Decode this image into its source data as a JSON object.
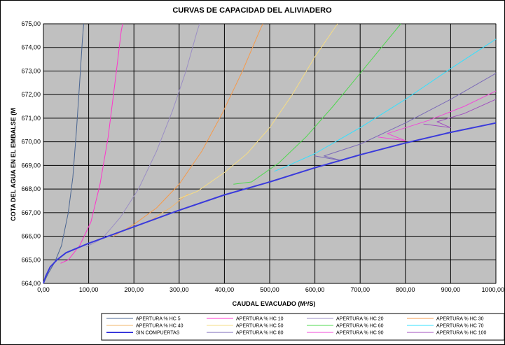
{
  "chart_data": {
    "type": "line",
    "title": "CURVAS DE CAPACIDAD DEL ALIVIADERO",
    "xlabel": "CAUDAL EVACUADO (M³/S)",
    "ylabel": "COTA DEL AGUA EN EL EMBALSE (M",
    "xlim": [
      0,
      1000
    ],
    "ylim": [
      664,
      675
    ],
    "x_ticks": [
      "0,00",
      "100,00",
      "200,00",
      "300,00",
      "400,00",
      "500,00",
      "600,00",
      "700,00",
      "800,00",
      "900,00",
      "1000,00"
    ],
    "y_ticks": [
      "664,00",
      "665,00",
      "666,00",
      "667,00",
      "668,00",
      "669,00",
      "670,00",
      "671,00",
      "672,00",
      "673,00",
      "674,00",
      "675,00"
    ],
    "grid": true,
    "plot_background": "#c0c0c0",
    "legend_position": "bottom",
    "series": [
      {
        "name": "APERTURA % HC 5",
        "color": "#4a6591",
        "width": 1,
        "points": [
          [
            0,
            664
          ],
          [
            10,
            664.4
          ],
          [
            25,
            664.9
          ],
          [
            40,
            665.6
          ],
          [
            55,
            667
          ],
          [
            65,
            668.5
          ],
          [
            73,
            670.5
          ],
          [
            80,
            672.5
          ],
          [
            86,
            674.3
          ],
          [
            89,
            675
          ]
        ]
      },
      {
        "name": "APERTURA % HC 10",
        "color": "#ff33cc",
        "width": 1,
        "points": [
          [
            38,
            664.85
          ],
          [
            55,
            665
          ],
          [
            80,
            665.6
          ],
          [
            105,
            666.6
          ],
          [
            125,
            668.2
          ],
          [
            143,
            670.2
          ],
          [
            160,
            672.8
          ],
          [
            172,
            674.7
          ],
          [
            175,
            675
          ]
        ]
      },
      {
        "name": "APERTURA % HC 20",
        "color": "#9b8ec4",
        "width": 1,
        "points": [
          [
            95,
            665.55
          ],
          [
            130,
            665.9
          ],
          [
            170,
            666.8
          ],
          [
            210,
            668
          ],
          [
            250,
            669.6
          ],
          [
            285,
            671.3
          ],
          [
            315,
            673
          ],
          [
            340,
            674.7
          ],
          [
            345,
            675
          ]
        ]
      },
      {
        "name": "APERTURA % HC 30",
        "color": "#f59a4b",
        "width": 1,
        "points": [
          [
            155,
            666
          ],
          [
            200,
            666.5
          ],
          [
            250,
            667.2
          ],
          [
            300,
            668.2
          ],
          [
            350,
            669.6
          ],
          [
            395,
            671.2
          ],
          [
            440,
            673
          ],
          [
            480,
            674.8
          ],
          [
            485,
            675
          ]
        ]
      },
      {
        "name": "APERTURA % HC 40",
        "color": "#f0b46a",
        "width": 1,
        "points": [
          [
            230,
            666.6
          ],
          [
            280,
            667.2
          ],
          [
            320,
            667.8
          ]
        ]
      },
      {
        "name": "APERTURA % HC 50",
        "color": "#f5dc83",
        "width": 1,
        "points": [
          [
            300,
            667.6
          ],
          [
            340,
            667.9
          ],
          [
            400,
            668.7
          ],
          [
            450,
            669.5
          ],
          [
            500,
            670.6
          ],
          [
            550,
            672
          ],
          [
            600,
            673.6
          ],
          [
            650,
            675
          ]
        ]
      },
      {
        "name": "APERTURA % HC 60",
        "color": "#4fd84f",
        "width": 1,
        "points": [
          [
            420,
            668.2
          ],
          [
            460,
            668.3
          ],
          [
            520,
            669.1
          ],
          [
            580,
            670.2
          ],
          [
            640,
            671.5
          ],
          [
            700,
            672.9
          ],
          [
            760,
            674.3
          ],
          [
            790,
            675
          ]
        ]
      },
      {
        "name": "APERTURA % HC 70",
        "color": "#33e1ff",
        "width": 1,
        "points": [
          [
            510,
            668.75
          ],
          [
            530,
            668.9
          ],
          [
            600,
            669.5
          ],
          [
            700,
            670.6
          ],
          [
            800,
            671.8
          ],
          [
            900,
            673.1
          ],
          [
            1000,
            674.35
          ]
        ]
      },
      {
        "name": "SIN COMPUERTAS",
        "color": "#3a3adb",
        "width": 2,
        "points": [
          [
            0,
            664
          ],
          [
            5,
            664.3
          ],
          [
            15,
            664.7
          ],
          [
            30,
            665
          ],
          [
            50,
            665.3
          ],
          [
            100,
            665.7
          ],
          [
            150,
            666.05
          ],
          [
            200,
            666.4
          ],
          [
            300,
            667.1
          ],
          [
            400,
            667.75
          ],
          [
            500,
            668.3
          ],
          [
            600,
            668.9
          ],
          [
            700,
            669.45
          ],
          [
            800,
            669.95
          ],
          [
            900,
            670.4
          ],
          [
            1000,
            670.8
          ]
        ]
      },
      {
        "name": "APERTURA % HC 80",
        "color": "#7b6ab8",
        "width": 1,
        "points": [
          [
            600,
            669.4
          ],
          [
            660,
            669.2
          ],
          [
            620,
            669.4
          ],
          [
            700,
            669.9
          ],
          [
            800,
            670.8
          ],
          [
            900,
            671.8
          ],
          [
            1000,
            672.9
          ]
        ]
      },
      {
        "name": "APERTURA % HC 90",
        "color": "#f04ad7",
        "width": 1,
        "points": [
          [
            740,
            670.2
          ],
          [
            800,
            670.05
          ],
          [
            760,
            670.35
          ],
          [
            850,
            670.9
          ],
          [
            930,
            671.5
          ],
          [
            1000,
            672.15
          ]
        ]
      },
      {
        "name": "APERTURA % HC 100",
        "color": "#a04fbf",
        "width": 1,
        "points": [
          [
            840,
            670.75
          ],
          [
            900,
            670.6
          ],
          [
            870,
            670.85
          ],
          [
            930,
            671.2
          ],
          [
            1000,
            671.8
          ]
        ]
      }
    ]
  }
}
